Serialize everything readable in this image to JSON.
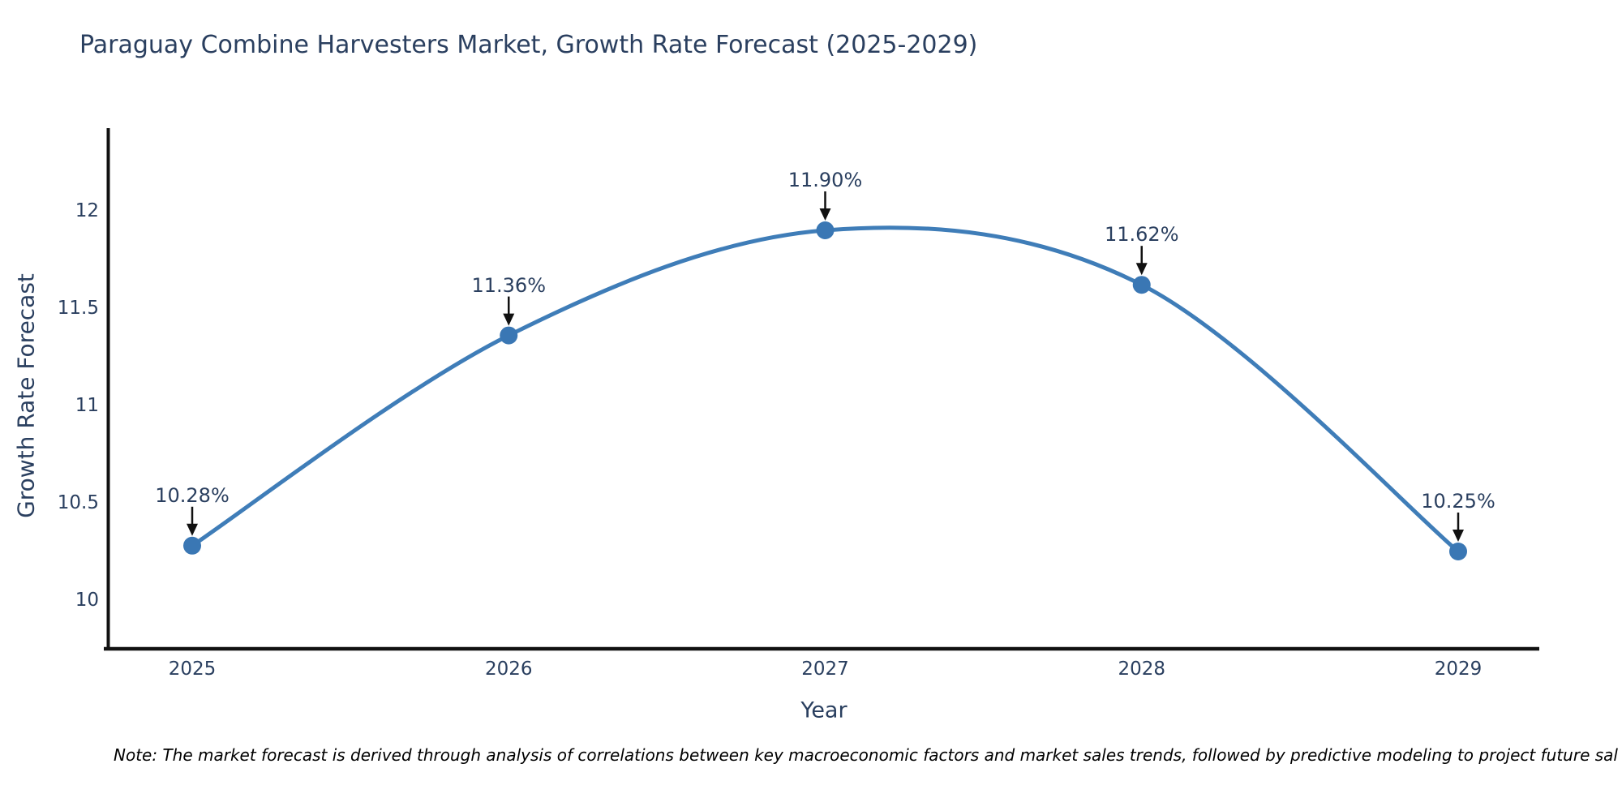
{
  "title": "Paraguay Combine Harvesters Market, Growth Rate Forecast (2025-2029)",
  "note": "Note: The market forecast is derived through analysis of correlations between key macroeconomic factors and market sales trends, followed by predictive modeling to project future sal",
  "chart_data": {
    "type": "line",
    "title": "Paraguay Combine Harvesters Market, Growth Rate Forecast (2025-2029)",
    "xlabel": "Year",
    "ylabel": "Growth Rate Forecast",
    "categories": [
      "2025",
      "2026",
      "2027",
      "2028",
      "2029"
    ],
    "series": [
      {
        "name": "Growth Rate Forecast",
        "values": [
          10.28,
          11.36,
          11.9,
          11.62,
          10.25
        ]
      }
    ],
    "annotations": [
      "10.28%",
      "11.36%",
      "11.90%",
      "11.62%",
      "10.25%"
    ],
    "ytick_labels": [
      "10",
      "10.5",
      "11",
      "11.5",
      "12"
    ],
    "yticks": [
      10,
      10.5,
      11,
      11.5,
      12
    ],
    "ylim": [
      9.75,
      12.43
    ],
    "grid": false,
    "legend": "none",
    "curve": "spline",
    "colors": {
      "line": "#3f7db8",
      "marker": "#3a77b4",
      "axis": "#111111",
      "arrow": "#111111",
      "text": "#2a3f5f",
      "note_text": "#000000"
    }
  }
}
